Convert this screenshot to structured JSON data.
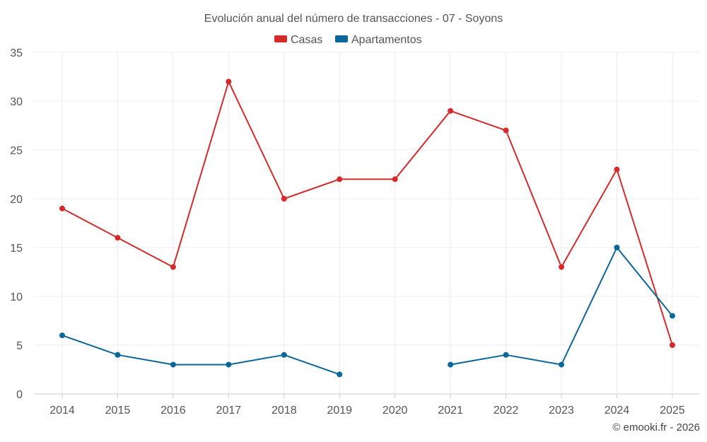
{
  "chart_data": {
    "type": "line",
    "title": "Evolución anual del número de transacciones - 07 - Soyons",
    "categories": [
      "2014",
      "2015",
      "2016",
      "2017",
      "2018",
      "2019",
      "2020",
      "2021",
      "2022",
      "2023",
      "2024",
      "2025"
    ],
    "series": [
      {
        "name": "Casas",
        "color": "#d42a2a",
        "values": [
          19,
          16,
          13,
          32,
          20,
          22,
          22,
          29,
          27,
          13,
          23,
          5
        ]
      },
      {
        "name": "Apartamentos",
        "color": "#0b6699",
        "values": [
          6,
          4,
          3,
          3,
          4,
          2,
          null,
          3,
          4,
          3,
          15,
          8
        ]
      }
    ],
    "yticks": [
      "0",
      "5",
      "10",
      "15",
      "20",
      "25",
      "30",
      "35"
    ],
    "ylim": [
      0,
      35
    ],
    "xlabel": "",
    "ylabel": "",
    "grid": true,
    "legend_position": "top-center"
  },
  "credit": "© emooki.fr - 2026"
}
